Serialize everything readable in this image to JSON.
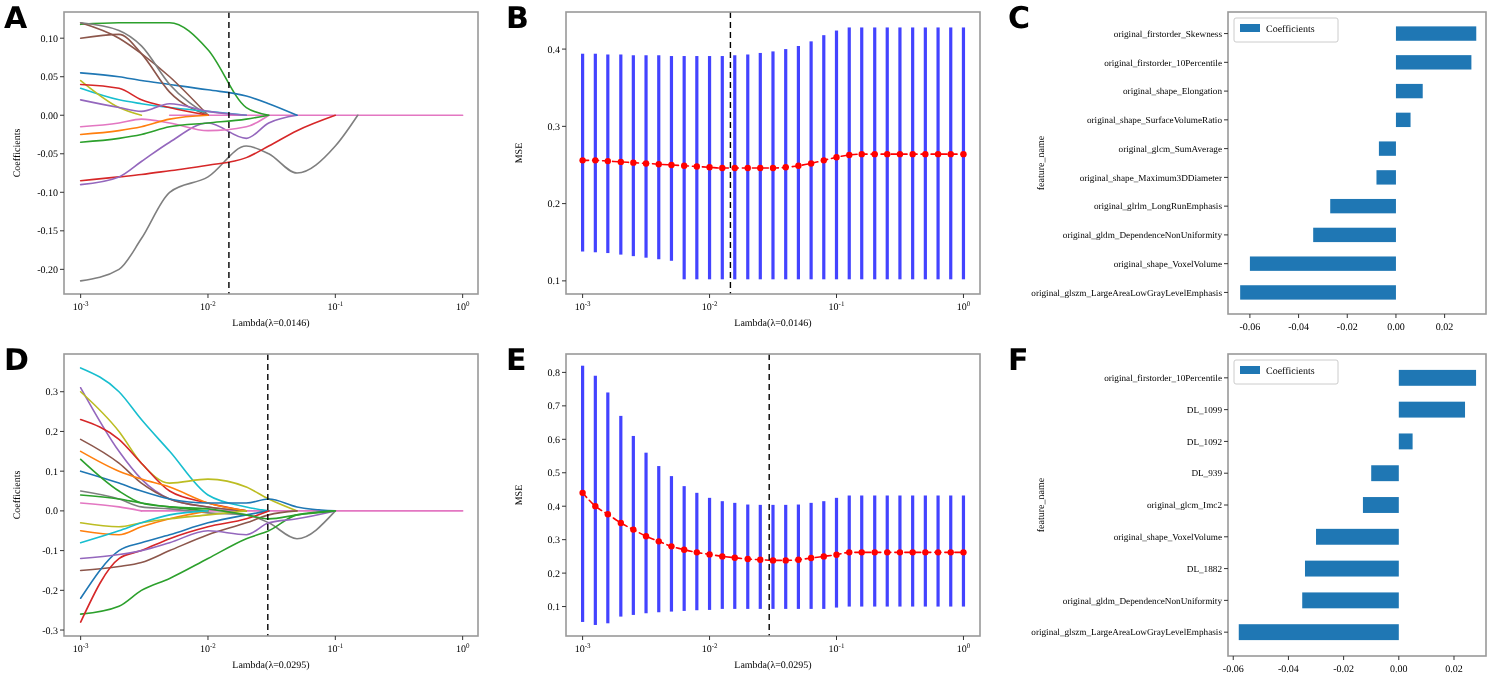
{
  "chart_data": [
    {
      "type": "line",
      "title": "A",
      "xlabel": "Lambda(λ=0.0146)",
      "ylabel": "Coefficients",
      "log": "x",
      "xlim": [
        0.00074,
        1.32
      ],
      "xticks": [
        {
          "value": 0.001,
          "label": "10$^{-3}$"
        },
        {
          "value": 0.01,
          "label": "10$^{-2}$"
        },
        {
          "value": 0.1,
          "label": "10$^{-1}$"
        },
        {
          "value": 1,
          "label": "10$^{0}$"
        }
      ],
      "ylim": [
        -0.232,
        0.134
      ],
      "yticks": [
        {
          "value": 0.1,
          "label": "0.10"
        },
        0.05,
        {
          "value": 0,
          "label": "0.00"
        },
        -0.05,
        {
          "value": -0.1,
          "label": "-0.10"
        },
        -0.15,
        {
          "value": -0.2,
          "label": "-0.20"
        }
      ],
      "ref_lines": [
        {
          "axis": "x",
          "value": 0.0146,
          "line_style": "dashed"
        }
      ],
      "x": [
        0.001,
        0.002,
        0.003,
        0.005,
        0.01,
        0.02,
        0.03,
        0.05,
        0.1,
        0.15
      ],
      "series": [
        {
          "color": "#e377c2",
          "x": [
            0.005,
            1
          ],
          "values": [
            0,
            0
          ]
        },
        {
          "color": "#2ca02c",
          "values": [
            0.118,
            0.12,
            0.12,
            0.12,
            0.085,
            0.01,
            0,
            null,
            null,
            null
          ]
        },
        {
          "color": "#7f7f7f",
          "values": [
            -0.215,
            -0.2,
            -0.16,
            -0.1,
            -0.08,
            -0.04,
            -0.05,
            -0.075,
            -0.04,
            0
          ]
        },
        {
          "color": "#d62728",
          "values": [
            -0.085,
            -0.08,
            -0.077,
            -0.072,
            -0.065,
            -0.055,
            -0.04,
            -0.02,
            0,
            null
          ]
        },
        {
          "color": "#9467bd",
          "values": [
            -0.09,
            -0.08,
            -0.06,
            -0.035,
            -0.01,
            -0.03,
            -0.01,
            0,
            null,
            null
          ]
        },
        {
          "color": "#1f77b4",
          "values": [
            0.055,
            0.05,
            0.045,
            0.04,
            0.033,
            0.025,
            0.015,
            0,
            null,
            null
          ]
        },
        {
          "color": "#8c564b",
          "values": [
            0.12,
            0.1,
            0.08,
            0.05,
            0,
            null,
            null,
            null,
            null,
            null
          ]
        },
        {
          "color": "#8c564b",
          "values": [
            0.1,
            0.105,
            0.08,
            0.03,
            0,
            null,
            null,
            null,
            null,
            null
          ]
        },
        {
          "color": "#7f7f7f",
          "values": [
            0.12,
            0.11,
            0.09,
            0.04,
            0,
            null,
            null,
            null,
            null,
            null
          ]
        },
        {
          "color": "#17becf",
          "values": [
            0.035,
            0.02,
            0.015,
            0.01,
            0.005,
            0,
            null,
            null,
            null,
            null
          ]
        },
        {
          "color": "#bcbd22",
          "values": [
            0.045,
            0.01,
            0,
            null,
            null,
            null,
            null,
            null,
            null,
            null
          ]
        },
        {
          "color": "#d62728",
          "values": [
            0.04,
            0.035,
            0.02,
            0.01,
            0,
            null,
            null,
            null,
            null,
            null
          ]
        },
        {
          "color": "#e377c2",
          "values": [
            -0.015,
            -0.01,
            -0.005,
            -0.01,
            -0.02,
            -0.015,
            0,
            null,
            null,
            null
          ]
        },
        {
          "color": "#ff7f0e",
          "values": [
            -0.025,
            -0.02,
            -0.015,
            -0.005,
            0,
            null,
            null,
            null,
            null,
            null
          ]
        },
        {
          "color": "#2ca02c",
          "values": [
            -0.035,
            -0.03,
            -0.025,
            -0.015,
            -0.01,
            -0.005,
            0,
            null,
            null,
            null
          ]
        },
        {
          "color": "#9467bd",
          "values": [
            0.02,
            0.01,
            0.005,
            0.015,
            0.005,
            0,
            null,
            null,
            null,
            null
          ]
        }
      ]
    },
    {
      "type": "line",
      "title": "B",
      "xlabel": "Lambda(λ=0.0146)",
      "ylabel": "MSE",
      "log": "x",
      "marker": "circle",
      "line_style": "dashed",
      "xlim": [
        0.00074,
        1.35
      ],
      "xticks": [
        {
          "value": 0.001,
          "label": "10$^{-3}$"
        },
        {
          "value": 0.01,
          "label": "10$^{-2}$"
        },
        {
          "value": 0.1,
          "label": "10$^{-1}$"
        },
        {
          "value": 1,
          "label": "10$^{0}$"
        }
      ],
      "ylim": [
        0.083,
        0.448
      ],
      "yticks": [
        0.1,
        0.2,
        0.3,
        0.4
      ],
      "ref_lines": [
        {
          "axis": "x",
          "value": 0.0146,
          "line_style": "dashed"
        }
      ],
      "x": [
        0.001,
        0.00126,
        0.00158,
        0.002,
        0.00251,
        0.00316,
        0.00398,
        0.00501,
        0.00631,
        0.00794,
        0.01,
        0.0126,
        0.0158,
        0.02,
        0.0251,
        0.0316,
        0.0398,
        0.0501,
        0.0631,
        0.0794,
        0.1,
        0.126,
        0.158,
        0.2,
        0.251,
        0.316,
        0.398,
        0.501,
        0.631,
        0.794,
        1
      ],
      "series": [
        {
          "color": "#ff0000",
          "values": [
            0.256,
            0.256,
            0.255,
            0.254,
            0.253,
            0.252,
            0.251,
            0.25,
            0.249,
            0.248,
            0.247,
            0.246,
            0.246,
            0.246,
            0.246,
            0.246,
            0.247,
            0.249,
            0.252,
            0.256,
            0.26,
            0.263,
            0.264,
            0.264,
            0.264,
            0.264,
            0.264,
            0.264,
            0.264,
            0.264,
            0.264
          ],
          "errors": [
            [
              0.138,
              0.394
            ],
            [
              0.137,
              0.394
            ],
            [
              0.136,
              0.393
            ],
            [
              0.134,
              0.393
            ],
            [
              0.132,
              0.392
            ],
            [
              0.13,
              0.392
            ],
            [
              0.128,
              0.392
            ],
            [
              0.126,
              0.391
            ],
            [
              0.102,
              0.391
            ],
            [
              0.102,
              0.391
            ],
            [
              0.102,
              0.391
            ],
            [
              0.102,
              0.391
            ],
            [
              0.102,
              0.392
            ],
            [
              0.102,
              0.393
            ],
            [
              0.102,
              0.395
            ],
            [
              0.102,
              0.397
            ],
            [
              0.102,
              0.4
            ],
            [
              0.102,
              0.404
            ],
            [
              0.102,
              0.41
            ],
            [
              0.102,
              0.418
            ],
            [
              0.102,
              0.424
            ],
            [
              0.102,
              0.428
            ],
            [
              0.102,
              0.428
            ],
            [
              0.102,
              0.428
            ],
            [
              0.102,
              0.428
            ],
            [
              0.102,
              0.428
            ],
            [
              0.102,
              0.428
            ],
            [
              0.102,
              0.428
            ],
            [
              0.102,
              0.428
            ],
            [
              0.102,
              0.428
            ],
            [
              0.102,
              0.428
            ]
          ]
        }
      ]
    },
    {
      "type": "bar",
      "title": "C",
      "orientation": "horizontal",
      "ylabel": "feature_name",
      "legend": "top left",
      "xlim": [
        -0.069,
        0.037
      ],
      "xticks": [
        -0.06,
        -0.04,
        -0.02,
        {
          "value": 0,
          "label": "0.00"
        },
        0.02
      ],
      "categories": [
        "original_firstorder_Skewness",
        "original_firstorder_10Percentile",
        "original_shape_Elongation",
        "original_shape_SurfaceVolumeRatio",
        "original_glcm_SumAverage",
        "original_shape_Maximum3DDiameter",
        "original_glrlm_LongRunEmphasis",
        "original_gldm_DependenceNonUniformity",
        "original_shape_VoxelVolume",
        "original_glszm_LargeAreaLowGrayLevelEmphasis"
      ],
      "series": [
        {
          "name": "Coefficients",
          "color": "#1f77b4",
          "values": [
            0.033,
            0.031,
            0.011,
            0.006,
            -0.007,
            -0.008,
            -0.027,
            -0.034,
            -0.06,
            -0.064
          ]
        }
      ]
    },
    {
      "type": "line",
      "title": "D",
      "xlabel": "Lambda(λ=0.0295)",
      "ylabel": "Coefficients",
      "log": "x",
      "xlim": [
        0.00074,
        1.32
      ],
      "xticks": [
        {
          "value": 0.001,
          "label": "10$^{-3}$"
        },
        {
          "value": 0.01,
          "label": "10$^{-2}$"
        },
        {
          "value": 0.1,
          "label": "10$^{-1}$"
        },
        {
          "value": 1,
          "label": "10$^{0}$"
        }
      ],
      "ylim": [
        -0.315,
        0.395
      ],
      "yticks": [
        0.3,
        0.2,
        0.1,
        {
          "value": 0,
          "label": "0.0"
        },
        -0.1,
        -0.2,
        -0.3
      ],
      "ref_lines": [
        {
          "axis": "x",
          "value": 0.0295,
          "line_style": "dashed"
        }
      ],
      "x": [
        0.001,
        0.002,
        0.003,
        0.005,
        0.01,
        0.02,
        0.03,
        0.05,
        0.1
      ],
      "series": [
        {
          "color": "#e377c2",
          "x": [
            0.003,
            1
          ],
          "values": [
            0,
            0
          ]
        },
        {
          "color": "#17becf",
          "values": [
            0.36,
            0.3,
            0.23,
            0.15,
            0.04,
            0.01,
            0,
            null,
            null
          ]
        },
        {
          "color": "#9467bd",
          "values": [
            0.31,
            0.15,
            0.08,
            0.03,
            0.01,
            0,
            null,
            null,
            null
          ]
        },
        {
          "color": "#bcbd22",
          "values": [
            0.3,
            0.2,
            0.12,
            0.07,
            0.08,
            0.06,
            0.03,
            0,
            null
          ]
        },
        {
          "color": "#d62728",
          "values": [
            0.23,
            0.18,
            0.12,
            0.05,
            0.02,
            0,
            null,
            null,
            null
          ]
        },
        {
          "color": "#8c564b",
          "values": [
            0.18,
            0.12,
            0.07,
            0.03,
            0.01,
            0,
            null,
            null,
            null
          ]
        },
        {
          "color": "#ff7f0e",
          "values": [
            0.15,
            0.1,
            0.08,
            0.06,
            0.02,
            0,
            null,
            null,
            null
          ]
        },
        {
          "color": "#1f77b4",
          "values": [
            0.1,
            0.07,
            0.05,
            0.03,
            0.02,
            0.02,
            0.03,
            0.01,
            0
          ]
        },
        {
          "color": "#2ca02c",
          "values": [
            0.13,
            0.05,
            0.02,
            0.01,
            0,
            null,
            null,
            null,
            null
          ]
        },
        {
          "color": "#7f7f7f",
          "values": [
            0.05,
            0.03,
            0.01,
            0.005,
            -0.005,
            -0.01,
            -0.03,
            -0.07,
            0
          ]
        },
        {
          "color": "#e377c2",
          "values": [
            0.02,
            0.01,
            0,
            null,
            null,
            null,
            null,
            null,
            null
          ]
        },
        {
          "color": "#2ca02c",
          "values": [
            -0.26,
            -0.24,
            -0.2,
            -0.17,
            -0.12,
            -0.07,
            -0.05,
            -0.01,
            0
          ]
        },
        {
          "color": "#8c564b",
          "values": [
            -0.15,
            -0.14,
            -0.13,
            -0.1,
            -0.06,
            -0.03,
            -0.01,
            0,
            null
          ]
        },
        {
          "color": "#1f77b4",
          "values": [
            -0.22,
            -0.1,
            -0.08,
            -0.06,
            -0.03,
            -0.01,
            0,
            null,
            null
          ]
        },
        {
          "color": "#d62728",
          "values": [
            -0.28,
            -0.12,
            -0.1,
            -0.07,
            -0.04,
            -0.02,
            0,
            null,
            null
          ]
        },
        {
          "color": "#9467bd",
          "values": [
            -0.12,
            -0.11,
            -0.1,
            -0.08,
            -0.05,
            -0.06,
            -0.03,
            -0.02,
            0
          ]
        },
        {
          "color": "#ff7f0e",
          "values": [
            -0.05,
            -0.06,
            -0.04,
            -0.02,
            0,
            null,
            null,
            null,
            null
          ]
        },
        {
          "color": "#bcbd22",
          "values": [
            -0.03,
            -0.04,
            -0.03,
            -0.02,
            -0.01,
            0,
            null,
            null,
            null
          ]
        },
        {
          "color": "#17becf",
          "values": [
            -0.08,
            -0.05,
            -0.03,
            -0.01,
            0,
            null,
            null,
            null,
            null
          ]
        },
        {
          "color": "#2ca02c",
          "values": [
            0.04,
            0.03,
            0.02,
            0.01,
            0.005,
            -0.01,
            -0.02,
            -0.01,
            0
          ]
        }
      ]
    },
    {
      "type": "line",
      "title": "E",
      "xlabel": "Lambda(λ=0.0295)",
      "ylabel": "MSE",
      "log": "x",
      "marker": "circle",
      "line_style": "dashed",
      "xlim": [
        0.00074,
        1.35
      ],
      "xticks": [
        {
          "value": 0.001,
          "label": "10$^{-3}$"
        },
        {
          "value": 0.01,
          "label": "10$^{-2}$"
        },
        {
          "value": 0.1,
          "label": "10$^{-1}$"
        },
        {
          "value": 1,
          "label": "10$^{0}$"
        }
      ],
      "ylim": [
        0.012,
        0.855
      ],
      "yticks": [
        0.1,
        0.2,
        0.3,
        0.4,
        0.5,
        0.6,
        0.7,
        0.8
      ],
      "ref_lines": [
        {
          "axis": "x",
          "value": 0.0295,
          "line_style": "dashed"
        }
      ],
      "x": [
        0.001,
        0.00126,
        0.00158,
        0.002,
        0.00251,
        0.00316,
        0.00398,
        0.00501,
        0.00631,
        0.00794,
        0.01,
        0.0126,
        0.0158,
        0.02,
        0.0251,
        0.0316,
        0.0398,
        0.0501,
        0.0631,
        0.0794,
        0.1,
        0.126,
        0.158,
        0.2,
        0.251,
        0.316,
        0.398,
        0.501,
        0.631,
        0.794,
        1
      ],
      "series": [
        {
          "color": "#ff0000",
          "values": [
            0.44,
            0.4,
            0.376,
            0.35,
            0.33,
            0.31,
            0.295,
            0.28,
            0.27,
            0.262,
            0.256,
            0.25,
            0.246,
            0.242,
            0.24,
            0.238,
            0.238,
            0.24,
            0.245,
            0.25,
            0.255,
            0.262,
            0.262,
            0.262,
            0.262,
            0.262,
            0.262,
            0.262,
            0.262,
            0.262,
            0.262
          ],
          "errors": [
            [
              0.054,
              0.82
            ],
            [
              0.045,
              0.79
            ],
            [
              0.05,
              0.74
            ],
            [
              0.07,
              0.67
            ],
            [
              0.075,
              0.61
            ],
            [
              0.08,
              0.56
            ],
            [
              0.083,
              0.52
            ],
            [
              0.085,
              0.49
            ],
            [
              0.087,
              0.46
            ],
            [
              0.089,
              0.44
            ],
            [
              0.09,
              0.425
            ],
            [
              0.093,
              0.415
            ],
            [
              0.093,
              0.41
            ],
            [
              0.093,
              0.405
            ],
            [
              0.093,
              0.404
            ],
            [
              0.093,
              0.404
            ],
            [
              0.093,
              0.404
            ],
            [
              0.093,
              0.405
            ],
            [
              0.093,
              0.41
            ],
            [
              0.093,
              0.415
            ],
            [
              0.097,
              0.425
            ],
            [
              0.1,
              0.432
            ],
            [
              0.1,
              0.432
            ],
            [
              0.1,
              0.432
            ],
            [
              0.1,
              0.432
            ],
            [
              0.1,
              0.432
            ],
            [
              0.1,
              0.432
            ],
            [
              0.1,
              0.432
            ],
            [
              0.1,
              0.432
            ],
            [
              0.1,
              0.432
            ],
            [
              0.1,
              0.432
            ]
          ]
        }
      ]
    },
    {
      "type": "bar",
      "title": "F",
      "orientation": "horizontal",
      "ylabel": "feature_name",
      "legend": "top left",
      "xlim": [
        -0.0619,
        0.0316
      ],
      "xticks": [
        -0.06,
        -0.04,
        -0.02,
        {
          "value": 0,
          "label": "0.00"
        },
        0.02
      ],
      "categories": [
        "original_firstorder_10Percentile",
        "DL_1099",
        "DL_1092",
        "DL_939",
        "original_glcm_Imc2",
        "original_shape_VoxelVolume",
        "DL_1882",
        "original_gldm_DependenceNonUniformity",
        "original_glszm_LargeAreaLowGrayLevelEmphasis"
      ],
      "series": [
        {
          "name": "Coefficients",
          "color": "#1f77b4",
          "values": [
            0.028,
            0.024,
            0.005,
            -0.01,
            -0.013,
            -0.03,
            -0.034,
            -0.035,
            -0.058
          ]
        }
      ]
    }
  ]
}
